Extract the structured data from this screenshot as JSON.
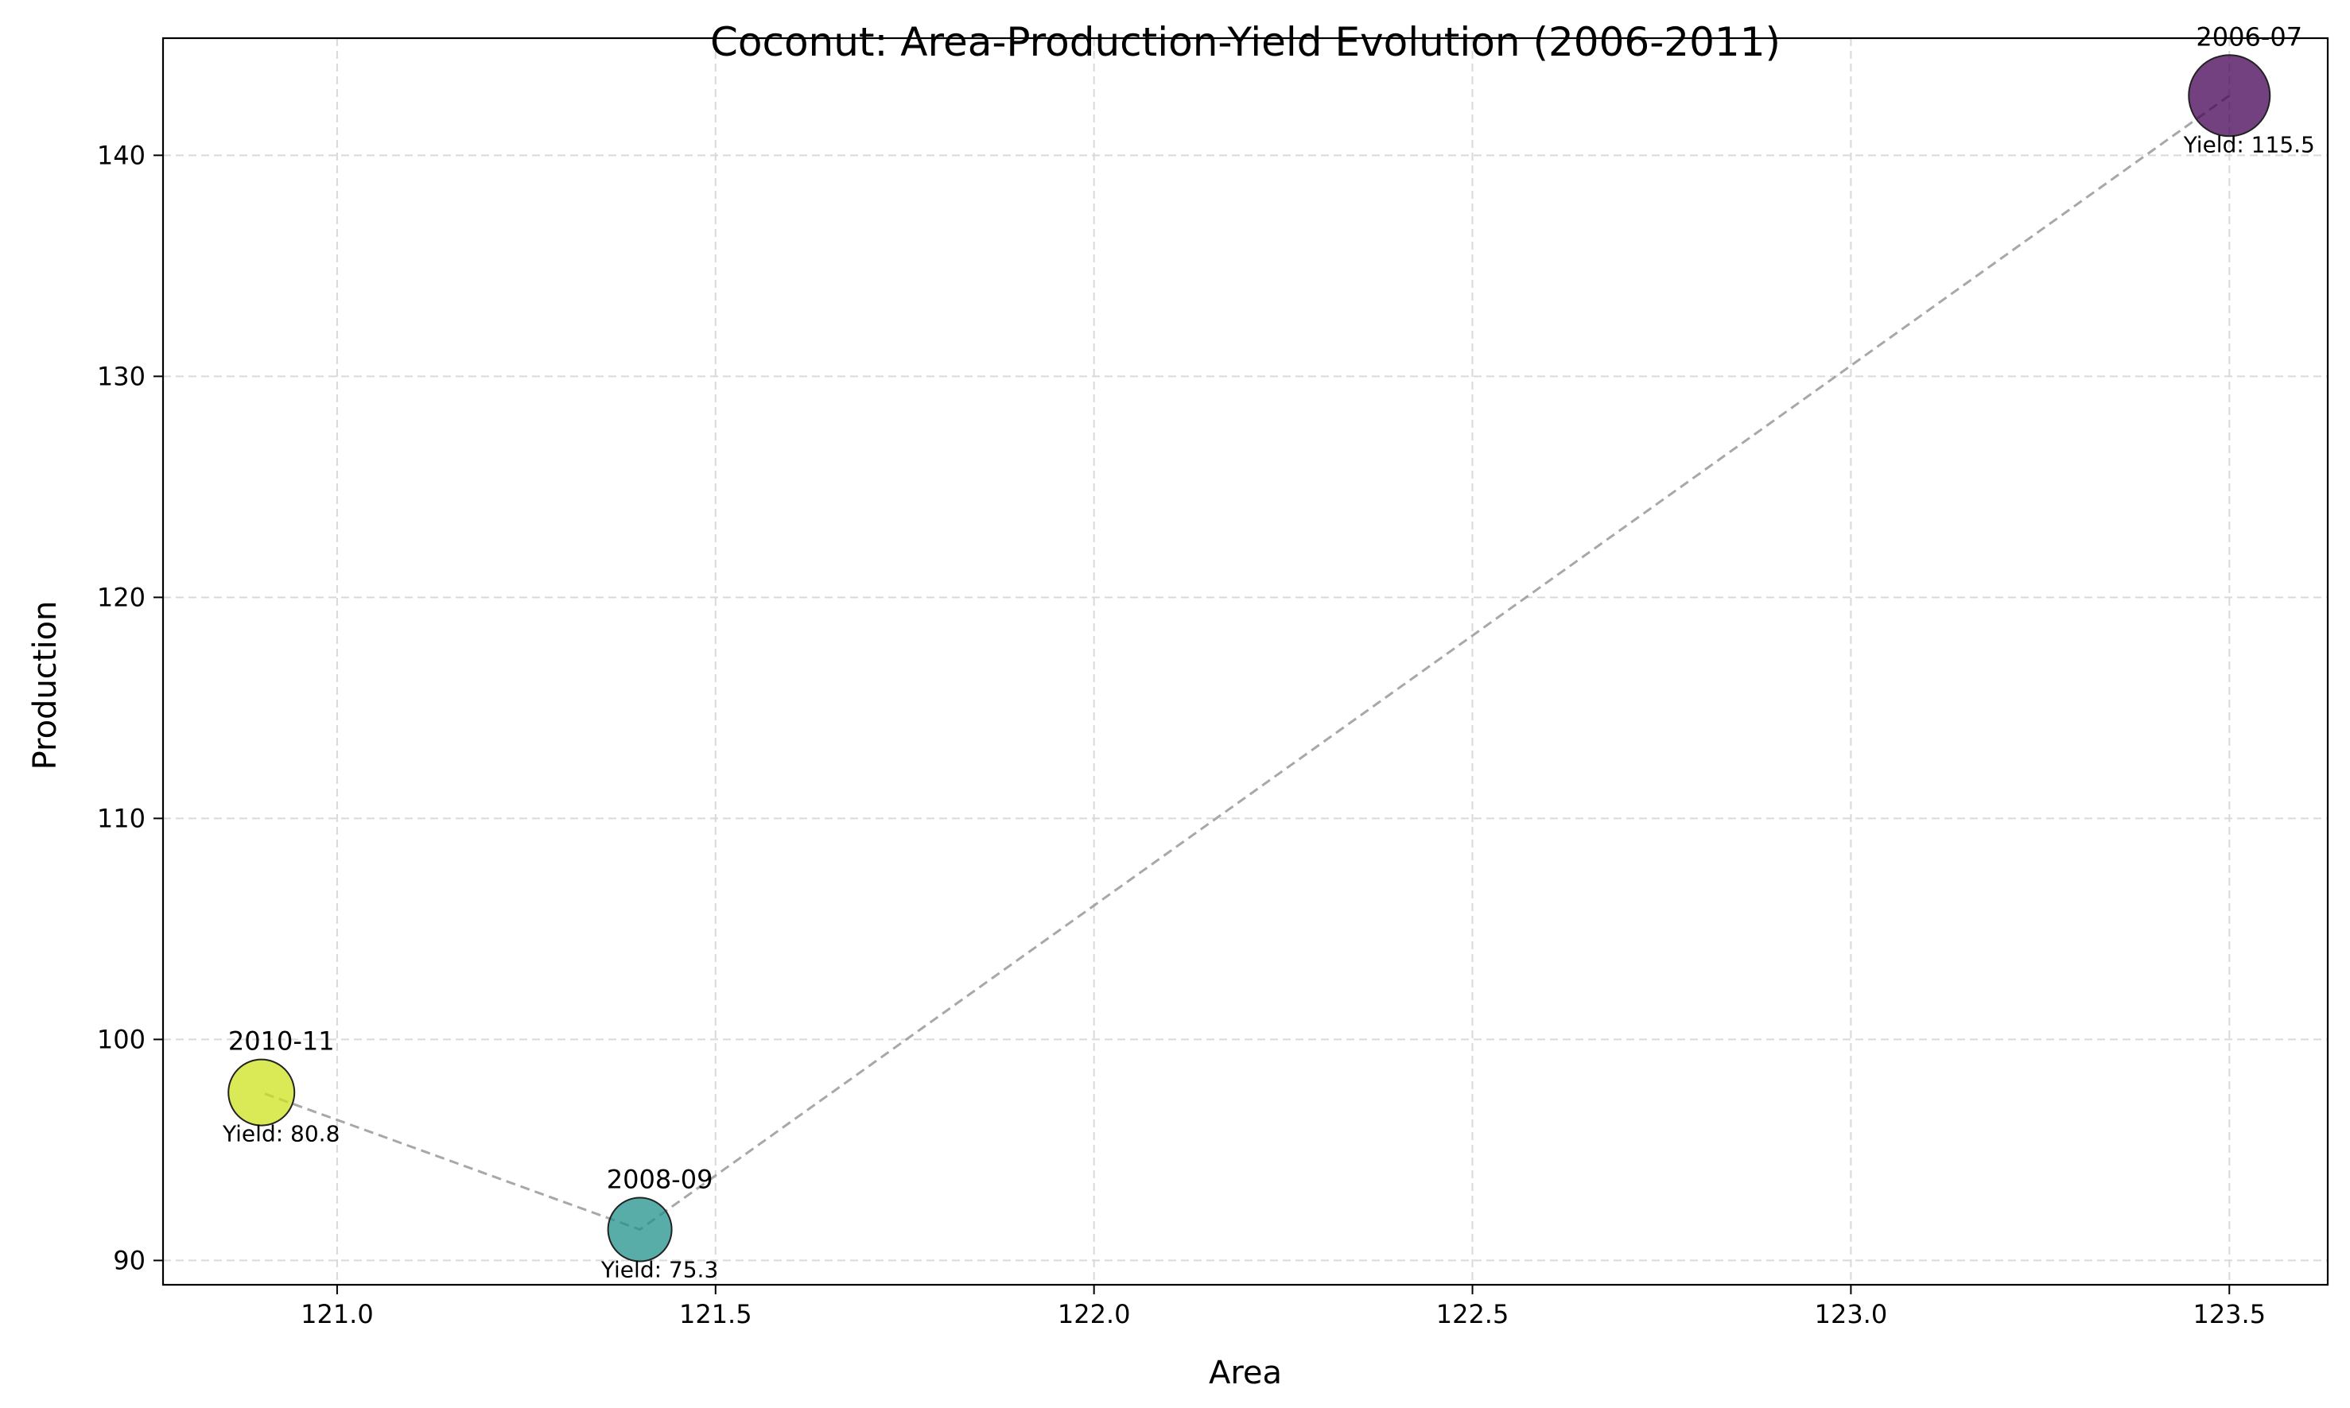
{
  "chart_data": {
    "type": "scatter",
    "title": "Coconut: Area-Production-Yield Evolution (2006-2011)",
    "xlabel": "Area",
    "ylabel": "Production",
    "xlim": [
      120.77,
      123.63
    ],
    "ylim": [
      88.9,
      145.3
    ],
    "xticks": [
      121.0,
      121.5,
      122.0,
      122.5,
      123.0,
      123.5
    ],
    "yticks": [
      90,
      100,
      110,
      120,
      130,
      140
    ],
    "grid": true,
    "points": [
      {
        "label": "2006-07",
        "x": 123.5,
        "y": 142.7,
        "yield": 115.5,
        "yield_label": "Yield: 115.5",
        "color": "#440154"
      },
      {
        "label": "2008-09",
        "x": 121.4,
        "y": 91.4,
        "yield": 75.3,
        "yield_label": "Yield: 75.3",
        "color": "#21918c"
      },
      {
        "label": "2010-11",
        "x": 120.9,
        "y": 97.6,
        "yield": 80.8,
        "yield_label": "Yield: 80.8",
        "color": "#cde11d"
      }
    ],
    "connector": {
      "style": "dashed",
      "color": "#999999"
    }
  }
}
